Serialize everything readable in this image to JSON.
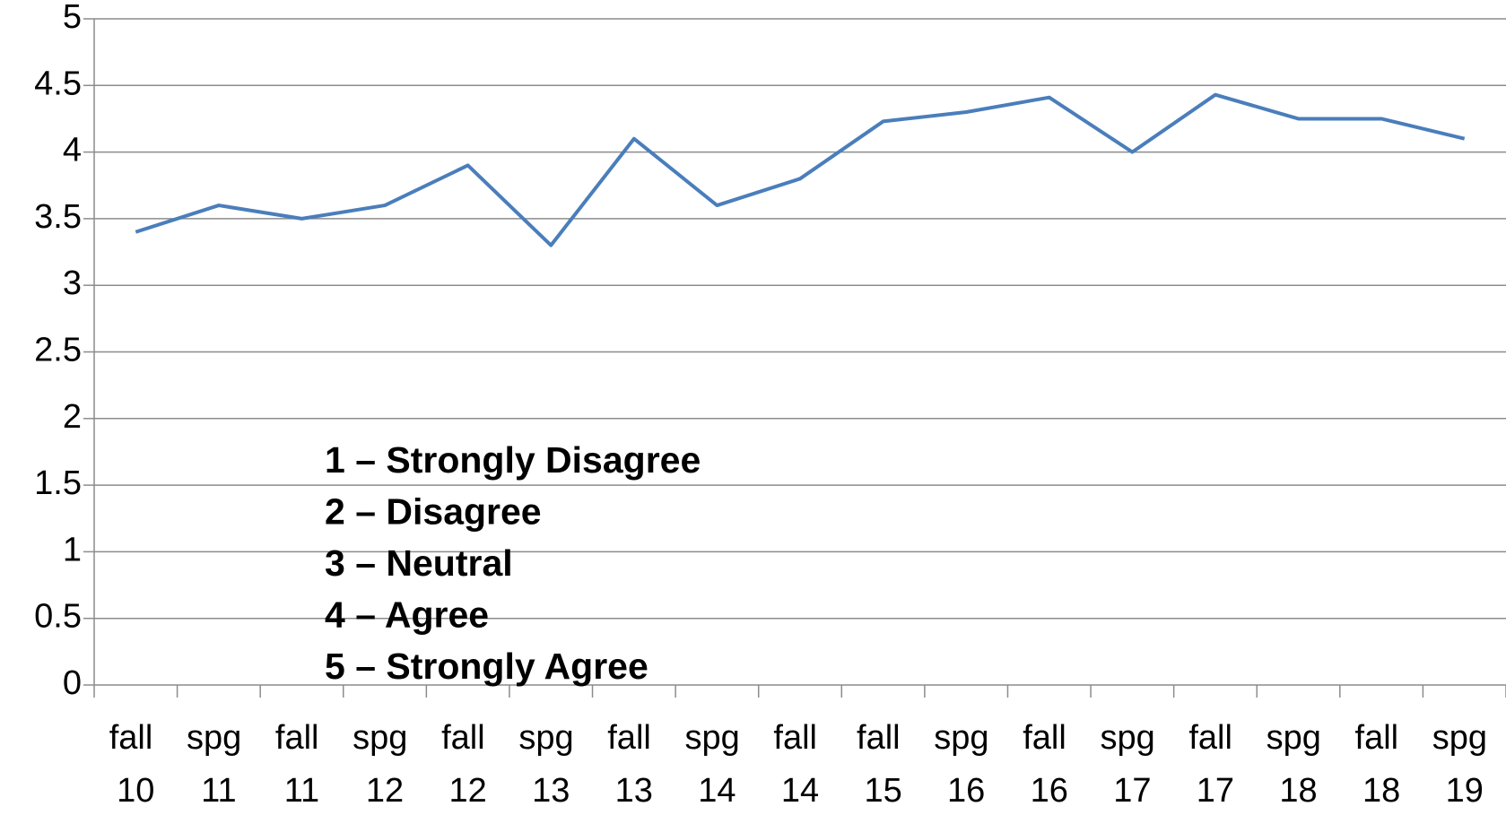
{
  "chart_data": {
    "type": "line",
    "categories": [
      "fall 10",
      "spg 11",
      "fall 11",
      "spg 12",
      "fall 12",
      "spg 13",
      "fall 13",
      "spg 14",
      "fall 14",
      "fall 15",
      "spg 16",
      "fall 16",
      "spg 17",
      "fall 17",
      "spg 18",
      "fall 18",
      "spg 19"
    ],
    "values": [
      3.4,
      3.6,
      3.5,
      3.6,
      3.9,
      3.3,
      4.1,
      3.6,
      3.8,
      4.23,
      4.3,
      4.41,
      4.0,
      4.43,
      4.25,
      4.25,
      4.1
    ],
    "color": "#4a7ebb",
    "ylim": [
      0,
      5
    ],
    "yticks": [
      0,
      0.5,
      1,
      1.5,
      2,
      2.5,
      3,
      3.5,
      4,
      4.5,
      5
    ],
    "grid": true,
    "annotations": [
      "1 – Strongly Disagree",
      "2 – Disagree",
      "3 – Neutral",
      "4 – Agree",
      "5 – Strongly Agree"
    ]
  }
}
